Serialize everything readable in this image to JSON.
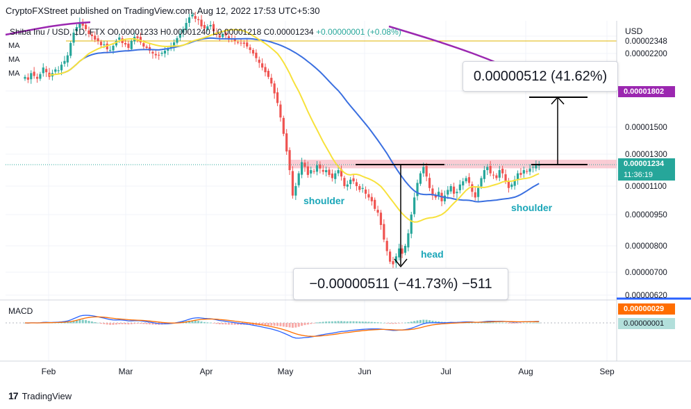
{
  "header": {
    "published": "CryptoFXStreet published on TradingView.com, Aug 12, 2022 17:53 UTC+5:30"
  },
  "symbol_line": {
    "text": "Shiba Inu / USD, 1D, FTX O0.00001233 H0.00001240 L0.00001218 C0.00001234",
    "change": "+0.00000001 (+0.08%)"
  },
  "ma_labels": [
    "MA",
    "MA",
    "MA"
  ],
  "currency": "USD",
  "watermark": "TradingView",
  "annotations": {
    "target": "0.00000512 (41.62%)",
    "depth": "−0.00000511 (−41.73%) −511",
    "shoulder_left": "shoulder",
    "head": "head",
    "shoulder_right": "shoulder"
  },
  "macd_label": "MACD",
  "price_tags": {
    "current_price": "0.00001234",
    "countdown": "11:36:19",
    "ma200": "0.00001802",
    "macd_value": "0.00000029",
    "signal_value": "0.00000001"
  },
  "colors": {
    "up": "#26a69a",
    "down": "#ef5350",
    "ma_fast": "#f7e13c",
    "ma_slow": "#3a6fe0",
    "ma_long": "#9b27b0",
    "macd_line": "#2962ff",
    "signal_line": "#ff6d00",
    "resistance_zone": "#f8bbc6",
    "label": "#1aa6b8"
  },
  "chart_data": {
    "type": "candlestick",
    "yaxis_ticks": [
      "0.00002348",
      "0.00002200",
      "0.00001500",
      "0.00001300",
      "0.00001100",
      "0.00000950",
      "0.00000800",
      "0.00000700",
      "0.00000620"
    ],
    "xaxis_ticks": [
      "Feb",
      "Mar",
      "Apr",
      "May",
      "Jun",
      "Jul",
      "Aug",
      "Sep"
    ],
    "price_range": [
      6.2e-06,
      2.45e-05
    ],
    "last_close": 1.234e-05,
    "neckline": 1.22e-05,
    "resistance_zone": [
      1.22e-05,
      1.265e-05
    ],
    "horizontal_level": 2.348e-05,
    "target_level": 1.746e-05,
    "low_point": 7.15e-06,
    "candles_close": [
      1.95e-05,
      1.92e-05,
      1.99e-05,
      1.96e-05,
      1.93e-05,
      1.98e-05,
      2.05e-05,
      2e-05,
      1.95e-05,
      1.99e-05,
      2.03e-05,
      2.02e-05,
      2.08e-05,
      2.12e-05,
      2.18e-05,
      2.35e-05,
      2.5e-05,
      2.58e-05,
      2.65e-05,
      2.6e-05,
      2.55e-05,
      2.48e-05,
      2.45e-05,
      2.4e-05,
      2.38e-05,
      2.32e-05,
      2.33e-05,
      2.26e-05,
      2.25e-05,
      2.31e-05,
      2.38e-05,
      2.43e-05,
      2.35e-05,
      2.33e-05,
      2.28e-05,
      2.38e-05,
      2.44e-05,
      2.42e-05,
      2.36e-05,
      2.3e-05,
      2.28e-05,
      2.24e-05,
      2.2e-05,
      2.18e-05,
      2.18e-05,
      2.21e-05,
      2.24e-05,
      2.26e-05,
      2.3e-05,
      2.36e-05,
      2.42e-05,
      2.48e-05,
      2.55e-05,
      2.64e-05,
      2.72e-05,
      2.76e-05,
      2.7e-05,
      2.68e-05,
      2.59e-05,
      2.56e-05,
      2.59e-05,
      2.61e-05,
      2.52e-05,
      2.47e-05,
      2.43e-05,
      2.48e-05,
      2.46e-05,
      2.42e-05,
      2.4e-05,
      2.38e-05,
      2.36e-05,
      2.35e-05,
      2.34e-05,
      2.3e-05,
      2.25e-05,
      2.2e-05,
      2.15e-05,
      2.1e-05,
      2.05e-05,
      2e-05,
      1.95e-05,
      1.88e-05,
      1.78e-05,
      1.7e-05,
      1.58e-05,
      1.45e-05,
      1.32e-05,
      1.2e-05,
      1.05e-05,
      1.1e-05,
      1.18e-05,
      1.25e-05,
      1.22e-05,
      1.17e-05,
      1.2e-05,
      1.19e-05,
      1.23e-05,
      1.21e-05,
      1.19e-05,
      1.2e-05,
      1.17e-05,
      1.15e-05,
      1.18e-05,
      1.2e-05,
      1.16e-05,
      1.1e-05,
      1.11e-05,
      1.14e-05,
      1.13e-05,
      1.1e-05,
      1.08e-05,
      1.09e-05,
      1.06e-05,
      1.04e-05,
      1.02e-05,
      9.8e-06,
      9.6e-06,
      9e-06,
      8.3e-06,
      7.8e-06,
      7.4e-06,
      7.3e-06,
      7.6e-06,
      7.9e-06,
      7.7e-06,
      8e-06,
      8.6e-06,
      9.5e-06,
      1.04e-05,
      1.12e-05,
      1.18e-05,
      1.22e-05,
      1.16e-05,
      1.09e-05,
      1.05e-05,
      1.04e-05,
      1.07e-05,
      1.02e-05,
      1.05e-05,
      1.08e-05,
      1.1e-05,
      1.06e-05,
      1.07e-05,
      1.11e-05,
      1.13e-05,
      1.15e-05,
      1.12e-05,
      1.07e-05,
      1.04e-05,
      1.09e-05,
      1.15e-05,
      1.2e-05,
      1.22e-05,
      1.18e-05,
      1.17e-05,
      1.15e-05,
      1.2e-05,
      1.18e-05,
      1.13e-05,
      1.09e-05,
      1.11e-05,
      1.14e-05,
      1.18e-05,
      1.17e-05,
      1.2e-05,
      1.19e-05,
      1.21e-05,
      1.22e-05,
      1.23e-05,
      1.234e-05
    ],
    "macd_series": [
      "MACD",
      "Signal",
      "Histogram"
    ],
    "macd_last": 2.9e-07,
    "signal_last": 1e-08
  }
}
